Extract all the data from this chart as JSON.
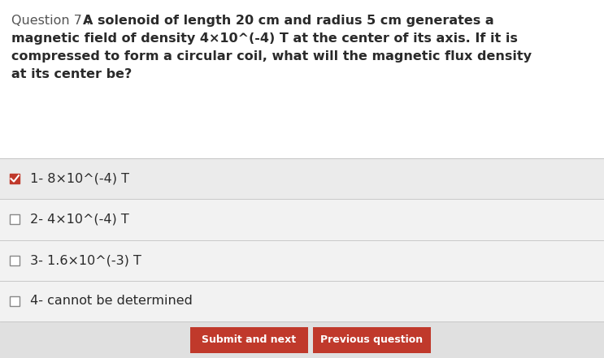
{
  "bg_color": "#e8e8e8",
  "white_bg": "#f5f5f5",
  "question_label": "Question 7 : ",
  "question_lines": [
    "A solenoid of length 20 cm and radius 5 cm generates a",
    "magnetic field of density 4×10^(-4) T at the center of its axis. If it is",
    "compressed to form a circular coil, what will the magnetic flux density",
    "at its center be?"
  ],
  "options": [
    {
      "label": " 1- 8×10^(-4) T",
      "checked": true
    },
    {
      "label": " 2- 4×10^(-4) T",
      "checked": false
    },
    {
      "label": " 3- 1.6×10^(-3) T",
      "checked": false
    },
    {
      "label": " 4- cannot be determined",
      "checked": false
    }
  ],
  "text_color": "#2a2a2a",
  "label_color": "#555555",
  "separator_color": "#c8c8c8",
  "checked_box_color": "#c0392b",
  "unchecked_box_color": "#888888",
  "button_color": "#c0392b",
  "button_text_color": "#ffffff",
  "font_size_q": 11.5,
  "font_size_opt": 11.5,
  "button_texts": [
    "Submit and next",
    "Previous question"
  ]
}
